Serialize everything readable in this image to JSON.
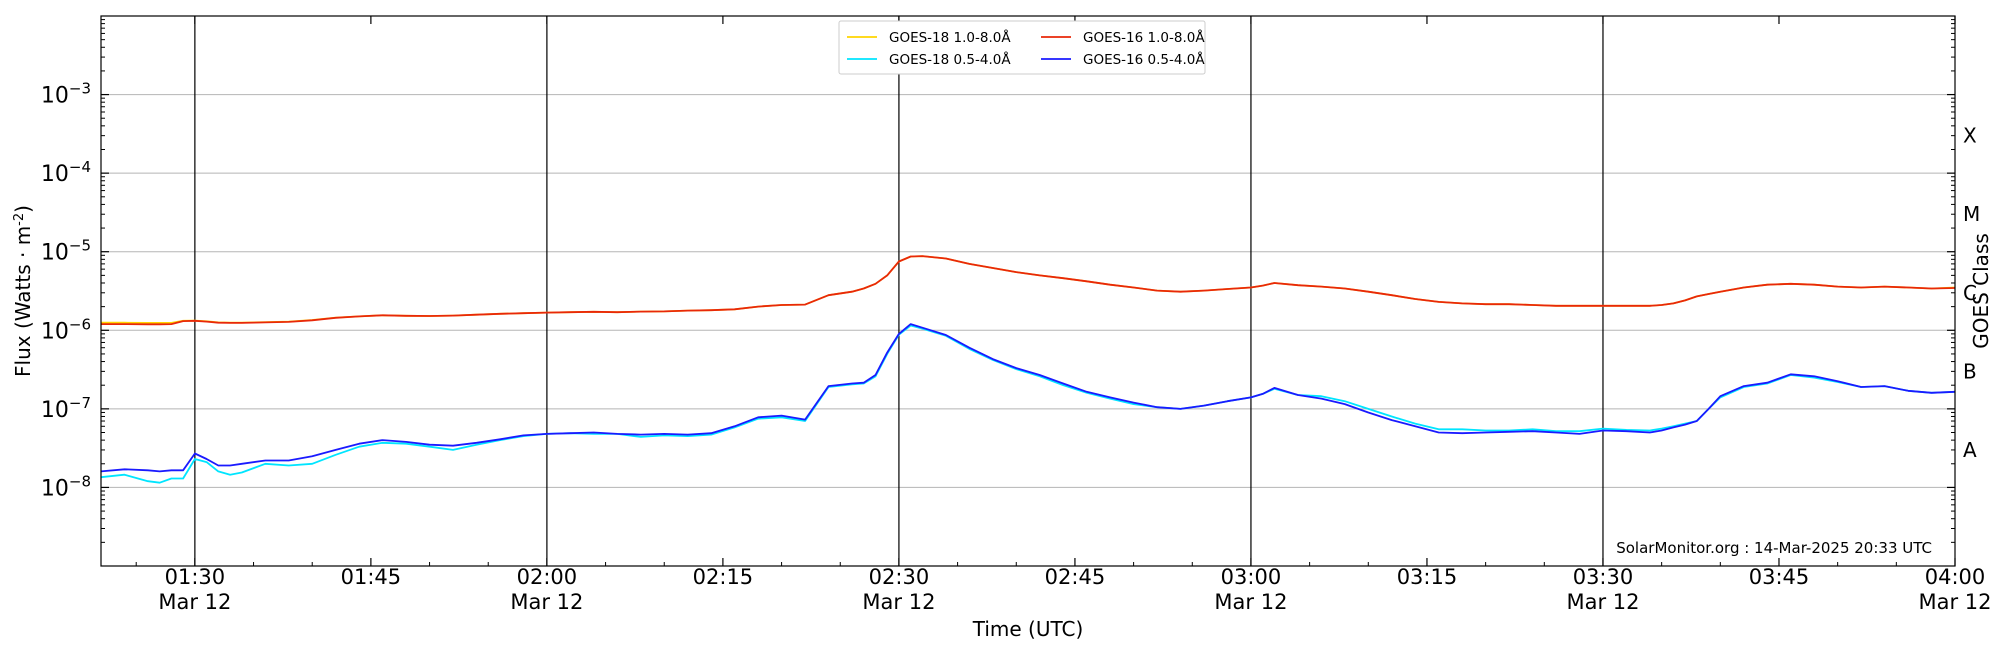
{
  "chart_data": {
    "type": "line",
    "ylabel": "Flux (Watts · m",
    "ylabel_sup": "-2",
    "ylabel_close": ")",
    "xlabel": "Time (UTC)",
    "right_label": "GOES Class",
    "credit": "SolarMonitor.org : 14-Mar-2025 20:33 UTC",
    "y_scale": "log",
    "ylim": [
      1e-09,
      0.01
    ],
    "x_unit": "minutes since 00:00 UTC, 12-Mar-2025",
    "xlim": [
      82,
      240
    ],
    "y_ticks": [
      {
        "exp": -3,
        "base": "10",
        "sup": "−3"
      },
      {
        "exp": -4,
        "base": "10",
        "sup": "−4"
      },
      {
        "exp": -5,
        "base": "10",
        "sup": "−5"
      },
      {
        "exp": -6,
        "base": "10",
        "sup": "−6"
      },
      {
        "exp": -7,
        "base": "10",
        "sup": "−7"
      },
      {
        "exp": -8,
        "base": "10",
        "sup": "−8"
      }
    ],
    "x_ticks": [
      {
        "t": 90,
        "time": "01:30",
        "date": "Mar 12",
        "vline": true
      },
      {
        "t": 105,
        "time": "01:45",
        "date": "",
        "vline": false
      },
      {
        "t": 120,
        "time": "02:00",
        "date": "Mar 12",
        "vline": true
      },
      {
        "t": 135,
        "time": "02:15",
        "date": "",
        "vline": false
      },
      {
        "t": 150,
        "time": "02:30",
        "date": "Mar 12",
        "vline": true
      },
      {
        "t": 165,
        "time": "02:45",
        "date": "",
        "vline": false
      },
      {
        "t": 180,
        "time": "03:00",
        "date": "Mar 12",
        "vline": true
      },
      {
        "t": 195,
        "time": "03:15",
        "date": "",
        "vline": false
      },
      {
        "t": 210,
        "time": "03:30",
        "date": "Mar 12",
        "vline": true
      },
      {
        "t": 225,
        "time": "03:45",
        "date": "",
        "vline": false
      },
      {
        "t": 240,
        "time": "04:00",
        "date": "Mar 12",
        "vline": false
      }
    ],
    "classes": [
      {
        "label": "X",
        "y": 0.0003
      },
      {
        "label": "M",
        "y": 3e-05
      },
      {
        "label": "C",
        "y": 3e-06
      },
      {
        "label": "B",
        "y": 3e-07
      },
      {
        "label": "A",
        "y": 3e-08
      }
    ],
    "grid": "horizontal at decades, vertical at hour and half-hour",
    "legend_position": "top-center",
    "x": [
      82,
      84,
      86,
      87,
      88,
      89,
      90,
      91,
      92,
      93,
      94,
      96,
      98,
      100,
      102,
      104,
      106,
      108,
      110,
      112,
      114,
      116,
      118,
      120,
      122,
      124,
      126,
      128,
      130,
      132,
      134,
      136,
      138,
      140,
      142,
      144,
      146,
      147,
      148,
      149,
      150,
      151,
      152,
      154,
      156,
      158,
      160,
      162,
      164,
      166,
      168,
      170,
      172,
      174,
      176,
      178,
      180,
      181,
      182,
      184,
      186,
      188,
      190,
      192,
      194,
      196,
      198,
      200,
      202,
      204,
      206,
      208,
      210,
      212,
      214,
      215,
      216,
      217,
      218,
      219,
      220,
      222,
      224,
      226,
      228,
      230,
      232,
      234,
      236,
      238,
      240
    ],
    "series": [
      {
        "name": "GOES-18 1.0-8.0Å",
        "color": "#ffd400",
        "values": [
          1.25e-06,
          1.25e-06,
          1.24e-06,
          1.24e-06,
          1.24e-06,
          1.32e-06,
          1.33e-06,
          1.3e-06,
          1.26e-06,
          1.25e-06,
          1.25e-06,
          1.27e-06,
          1.29e-06,
          1.35e-06,
          1.45e-06,
          1.5e-06,
          1.55e-06,
          1.53e-06,
          1.52e-06,
          1.54e-06,
          1.58e-06,
          1.62e-06,
          1.65e-06,
          1.68e-06,
          1.7e-06,
          1.72e-06,
          1.7e-06,
          1.73e-06,
          1.74e-06,
          1.78e-06,
          1.8e-06,
          1.85e-06,
          2e-06,
          2.1e-06,
          2.12e-06,
          2.8e-06,
          3.1e-06,
          3.4e-06,
          3.9e-06,
          5e-06,
          7.5e-06,
          8.7e-06,
          8.8e-06,
          8.2e-06,
          7e-06,
          6.2e-06,
          5.5e-06,
          5e-06,
          4.6e-06,
          4.2e-06,
          3.8e-06,
          3.5e-06,
          3.2e-06,
          3.1e-06,
          3.2e-06,
          3.35e-06,
          3.5e-06,
          3.7e-06,
          4e-06,
          3.75e-06,
          3.6e-06,
          3.4e-06,
          3.1e-06,
          2.8e-06,
          2.5e-06,
          2.3e-06,
          2.2e-06,
          2.15e-06,
          2.15e-06,
          2.1e-06,
          2.05e-06,
          2.05e-06,
          2.05e-06,
          2.05e-06,
          2.05e-06,
          2.1e-06,
          2.2e-06,
          2.4e-06,
          2.7e-06,
          2.9e-06,
          3.1e-06,
          3.5e-06,
          3.8e-06,
          3.9e-06,
          3.8e-06,
          3.6e-06,
          3.5e-06,
          3.6e-06,
          3.5e-06,
          3.4e-06,
          3.5e-06
        ]
      },
      {
        "name": "GOES-16 1.0-8.0Å",
        "color": "#e8280a",
        "values": [
          1.2e-06,
          1.2e-06,
          1.19e-06,
          1.19e-06,
          1.2e-06,
          1.31e-06,
          1.32e-06,
          1.29e-06,
          1.25e-06,
          1.24e-06,
          1.24e-06,
          1.26e-06,
          1.28e-06,
          1.34e-06,
          1.44e-06,
          1.5e-06,
          1.55e-06,
          1.53e-06,
          1.52e-06,
          1.54e-06,
          1.58e-06,
          1.62e-06,
          1.65e-06,
          1.68e-06,
          1.7e-06,
          1.72e-06,
          1.7e-06,
          1.73e-06,
          1.74e-06,
          1.78e-06,
          1.8e-06,
          1.85e-06,
          2e-06,
          2.1e-06,
          2.12e-06,
          2.8e-06,
          3.1e-06,
          3.4e-06,
          3.9e-06,
          5e-06,
          7.5e-06,
          8.7e-06,
          8.8e-06,
          8.2e-06,
          7e-06,
          6.2e-06,
          5.5e-06,
          5e-06,
          4.6e-06,
          4.2e-06,
          3.8e-06,
          3.5e-06,
          3.2e-06,
          3.1e-06,
          3.2e-06,
          3.35e-06,
          3.5e-06,
          3.7e-06,
          4e-06,
          3.75e-06,
          3.6e-06,
          3.4e-06,
          3.1e-06,
          2.8e-06,
          2.5e-06,
          2.3e-06,
          2.2e-06,
          2.15e-06,
          2.15e-06,
          2.1e-06,
          2.05e-06,
          2.05e-06,
          2.05e-06,
          2.05e-06,
          2.05e-06,
          2.1e-06,
          2.2e-06,
          2.4e-06,
          2.7e-06,
          2.9e-06,
          3.1e-06,
          3.5e-06,
          3.8e-06,
          3.9e-06,
          3.8e-06,
          3.6e-06,
          3.5e-06,
          3.6e-06,
          3.5e-06,
          3.4e-06,
          3.45e-06
        ]
      },
      {
        "name": "GOES-18 0.5-4.0Å",
        "color": "#00e5ff",
        "values": [
          1.35e-08,
          1.45e-08,
          1.2e-08,
          1.15e-08,
          1.3e-08,
          1.3e-08,
          2.3e-08,
          2.1e-08,
          1.6e-08,
          1.45e-08,
          1.55e-08,
          2e-08,
          1.9e-08,
          2e-08,
          2.6e-08,
          3.3e-08,
          3.7e-08,
          3.6e-08,
          3.3e-08,
          3e-08,
          3.5e-08,
          4e-08,
          4.5e-08,
          4.8e-08,
          4.9e-08,
          4.8e-08,
          4.8e-08,
          4.4e-08,
          4.6e-08,
          4.5e-08,
          4.7e-08,
          5.8e-08,
          7.5e-08,
          7.8e-08,
          7e-08,
          1.9e-07,
          2.05e-07,
          2.1e-07,
          2.6e-07,
          5e-07,
          8.8e-07,
          1.15e-06,
          1.05e-06,
          8.5e-07,
          5.8e-07,
          4.2e-07,
          3.2e-07,
          2.6e-07,
          2e-07,
          1.6e-07,
          1.35e-07,
          1.15e-07,
          1.05e-07,
          1e-07,
          1.1e-07,
          1.25e-07,
          1.4e-07,
          1.55e-07,
          1.8e-07,
          1.5e-07,
          1.45e-07,
          1.25e-07,
          1e-07,
          8e-08,
          6.5e-08,
          5.5e-08,
          5.5e-08,
          5.3e-08,
          5.3e-08,
          5.5e-08,
          5.2e-08,
          5.2e-08,
          5.6e-08,
          5.4e-08,
          5.3e-08,
          5.6e-08,
          6e-08,
          6.5e-08,
          7e-08,
          1e-07,
          1.4e-07,
          1.9e-07,
          2.1e-07,
          2.7e-07,
          2.5e-07,
          2.2e-07,
          1.9e-07,
          1.95e-07,
          1.7e-07,
          1.6e-07,
          1.65e-07
        ]
      },
      {
        "name": "GOES-16 0.5-4.0Å",
        "color": "#1a1aff",
        "values": [
          1.6e-08,
          1.7e-08,
          1.65e-08,
          1.6e-08,
          1.65e-08,
          1.65e-08,
          2.7e-08,
          2.3e-08,
          1.9e-08,
          1.9e-08,
          2e-08,
          2.2e-08,
          2.2e-08,
          2.5e-08,
          3e-08,
          3.6e-08,
          4e-08,
          3.8e-08,
          3.5e-08,
          3.4e-08,
          3.7e-08,
          4.1e-08,
          4.6e-08,
          4.8e-08,
          4.9e-08,
          5e-08,
          4.8e-08,
          4.7e-08,
          4.8e-08,
          4.7e-08,
          4.9e-08,
          6e-08,
          7.8e-08,
          8.2e-08,
          7.3e-08,
          1.95e-07,
          2.1e-07,
          2.15e-07,
          2.7e-07,
          5.2e-07,
          9e-07,
          1.2e-06,
          1.08e-06,
          8.7e-07,
          6e-07,
          4.3e-07,
          3.3e-07,
          2.7e-07,
          2.1e-07,
          1.65e-07,
          1.4e-07,
          1.2e-07,
          1.05e-07,
          1e-07,
          1.1e-07,
          1.25e-07,
          1.4e-07,
          1.55e-07,
          1.85e-07,
          1.5e-07,
          1.35e-07,
          1.15e-07,
          9e-08,
          7.2e-08,
          6e-08,
          5e-08,
          4.9e-08,
          5e-08,
          5.1e-08,
          5.2e-08,
          5e-08,
          4.8e-08,
          5.3e-08,
          5.2e-08,
          5e-08,
          5.3e-08,
          5.8e-08,
          6.3e-08,
          7e-08,
          1e-07,
          1.45e-07,
          1.95e-07,
          2.15e-07,
          2.75e-07,
          2.6e-07,
          2.25e-07,
          1.9e-07,
          1.95e-07,
          1.7e-07,
          1.6e-07,
          1.65e-07
        ]
      }
    ]
  }
}
